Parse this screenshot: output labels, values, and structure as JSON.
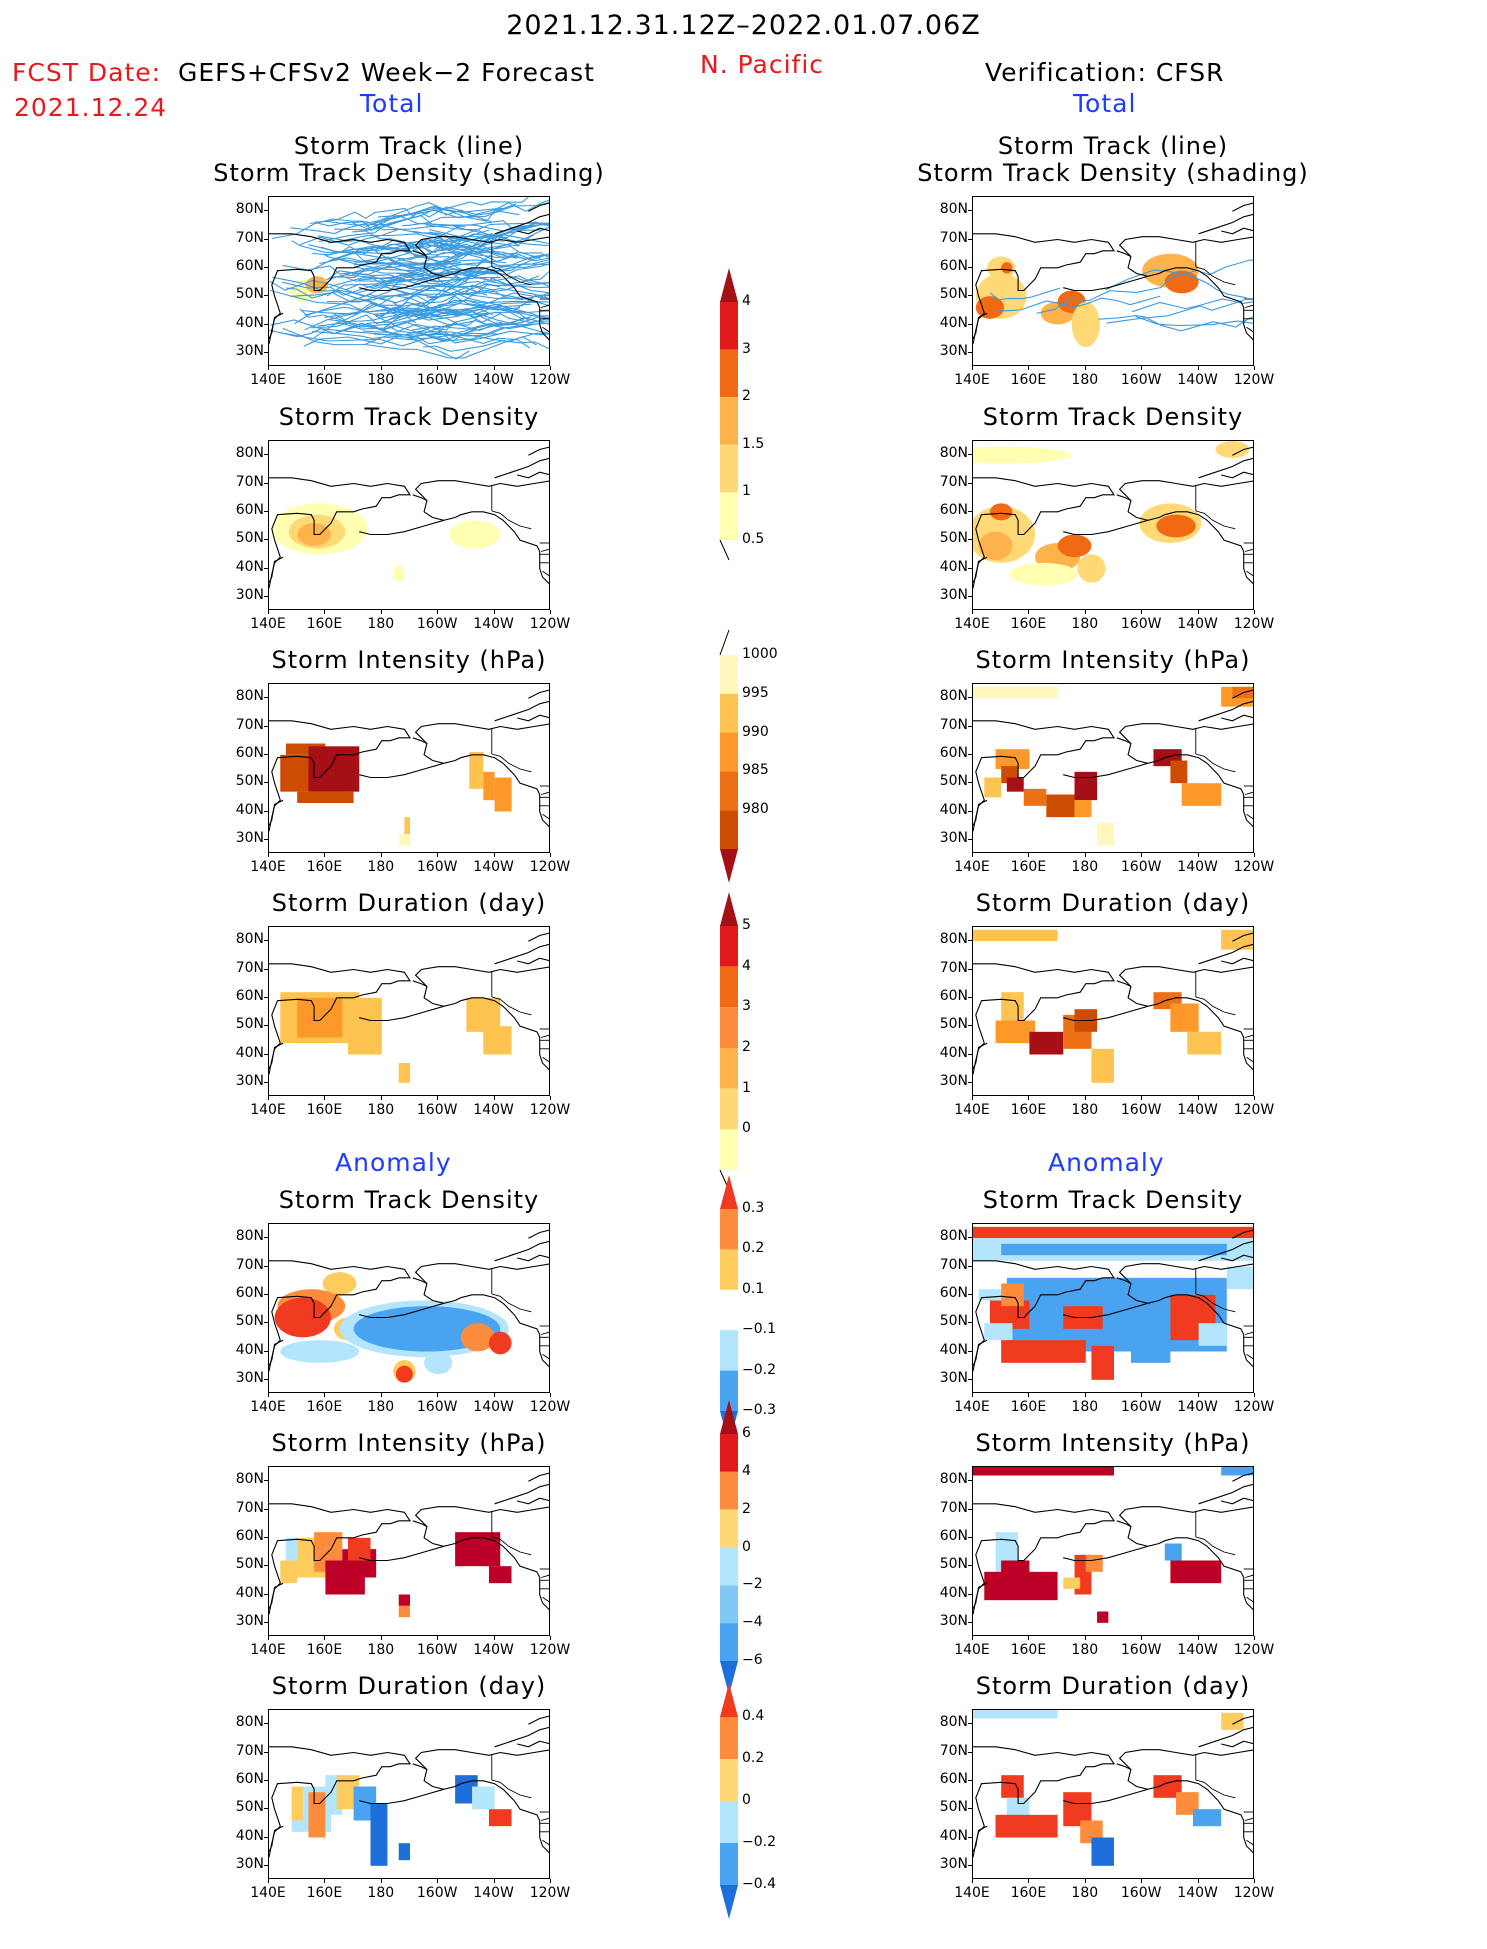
{
  "header": {
    "title": "2021.12.31.12Z–2022.01.07.06Z",
    "region": "N. Pacific",
    "fcst_label": "FCST Date:",
    "fcst_model": "GEFS+CFSv2 Week−2 Forecast",
    "fcst_date": "2021.12.24",
    "verification": "Verification: CFSR",
    "total_left": "Total",
    "total_right": "Total",
    "anomaly_left": "Anomaly",
    "anomaly_right": "Anomaly"
  },
  "chart_data": [
    {
      "type": "heatmap",
      "id": "track-fcst",
      "title": "Storm Track (line)",
      "subtitle": "Storm Track Density (shading)",
      "column": "GEFS+CFSv2 Week-2 Forecast",
      "xlabels": [
        "140E",
        "160E",
        "180",
        "160W",
        "140W",
        "120W"
      ],
      "ylabels": [
        "80N",
        "70N",
        "60N",
        "50N",
        "40N",
        "30N"
      ]
    },
    {
      "type": "heatmap",
      "id": "track-verif",
      "title": "Storm Track (line)",
      "subtitle": "Storm Track Density (shading)",
      "column": "Verification: CFSR",
      "xlabels": [
        "140E",
        "160E",
        "180",
        "160W",
        "140W",
        "120W"
      ],
      "ylabels": [
        "80N",
        "70N",
        "60N",
        "50N",
        "40N",
        "30N"
      ]
    },
    {
      "type": "heatmap",
      "id": "density-fcst",
      "title": "Storm Track Density",
      "xlabels": [
        "140E",
        "160E",
        "180",
        "160W",
        "140W",
        "120W"
      ],
      "ylabels": [
        "80N",
        "70N",
        "60N",
        "50N",
        "40N",
        "30N"
      ]
    },
    {
      "type": "heatmap",
      "id": "density-verif",
      "title": "Storm Track Density",
      "xlabels": [
        "140E",
        "160E",
        "180",
        "160W",
        "140W",
        "120W"
      ],
      "ylabels": [
        "80N",
        "70N",
        "60N",
        "50N",
        "40N",
        "30N"
      ]
    },
    {
      "type": "heatmap",
      "id": "intensity-fcst",
      "title": "Storm Intensity (hPa)",
      "xlabels": [
        "140E",
        "160E",
        "180",
        "160W",
        "140W",
        "120W"
      ],
      "ylabels": [
        "80N",
        "70N",
        "60N",
        "50N",
        "40N",
        "30N"
      ]
    },
    {
      "type": "heatmap",
      "id": "intensity-verif",
      "title": "Storm Intensity (hPa)",
      "xlabels": [
        "140E",
        "160E",
        "180",
        "160W",
        "140W",
        "120W"
      ],
      "ylabels": [
        "80N",
        "70N",
        "60N",
        "50N",
        "40N",
        "30N"
      ]
    },
    {
      "type": "heatmap",
      "id": "duration-fcst",
      "title": "Storm Duration (day)",
      "xlabels": [
        "140E",
        "160E",
        "180",
        "160W",
        "140W",
        "120W"
      ],
      "ylabels": [
        "80N",
        "70N",
        "60N",
        "50N",
        "40N",
        "30N"
      ]
    },
    {
      "type": "heatmap",
      "id": "duration-verif",
      "title": "Storm Duration (day)",
      "xlabels": [
        "140E",
        "160E",
        "180",
        "160W",
        "140W",
        "120W"
      ],
      "ylabels": [
        "80N",
        "70N",
        "60N",
        "50N",
        "40N",
        "30N"
      ]
    },
    {
      "type": "heatmap",
      "id": "anom-density-fcst",
      "title": "Storm Track Density",
      "xlabels": [
        "140E",
        "160E",
        "180",
        "160W",
        "140W",
        "120W"
      ],
      "ylabels": [
        "80N",
        "70N",
        "60N",
        "50N",
        "40N",
        "30N"
      ]
    },
    {
      "type": "heatmap",
      "id": "anom-density-verif",
      "title": "Storm Track Density",
      "xlabels": [
        "140E",
        "160E",
        "180",
        "160W",
        "140W",
        "120W"
      ],
      "ylabels": [
        "80N",
        "70N",
        "60N",
        "50N",
        "40N",
        "30N"
      ]
    },
    {
      "type": "heatmap",
      "id": "anom-intensity-fcst",
      "title": "Storm Intensity (hPa)",
      "xlabels": [
        "140E",
        "160E",
        "180",
        "160W",
        "140W",
        "120W"
      ],
      "ylabels": [
        "80N",
        "70N",
        "60N",
        "50N",
        "40N",
        "30N"
      ]
    },
    {
      "type": "heatmap",
      "id": "anom-intensity-verif",
      "title": "Storm Intensity (hPa)",
      "xlabels": [
        "140E",
        "160E",
        "180",
        "160W",
        "140W",
        "120W"
      ],
      "ylabels": [
        "80N",
        "70N",
        "60N",
        "50N",
        "40N",
        "30N"
      ]
    },
    {
      "type": "heatmap",
      "id": "anom-duration-fcst",
      "title": "Storm Duration (day)",
      "xlabels": [
        "140E",
        "160E",
        "180",
        "160W",
        "140W",
        "120W"
      ],
      "ylabels": [
        "80N",
        "70N",
        "60N",
        "50N",
        "40N",
        "30N"
      ]
    },
    {
      "type": "heatmap",
      "id": "anom-duration-verif",
      "title": "Storm Duration (day)",
      "xlabels": [
        "140E",
        "160E",
        "180",
        "160W",
        "140W",
        "120W"
      ],
      "ylabels": [
        "80N",
        "70N",
        "60N",
        "50N",
        "40N",
        "30N"
      ]
    }
  ],
  "colorbars": [
    {
      "id": "cb-density",
      "labels": [
        "4",
        "3",
        "2",
        "1.5",
        "1",
        "0.5"
      ],
      "colors": [
        "#a50f15",
        "#e31a1c",
        "#f16913",
        "#feb24c",
        "#fed976",
        "#ffffb2"
      ]
    },
    {
      "id": "cb-intensity",
      "labels": [
        "1000",
        "995",
        "990",
        "985",
        "980"
      ],
      "colors": [
        "#fff7bc",
        "#fec44f",
        "#fe9929",
        "#ec7014",
        "#cc4c02",
        "#a50f15"
      ]
    },
    {
      "id": "cb-duration",
      "labels": [
        "5",
        "4",
        "3",
        "2",
        "1",
        "0"
      ],
      "colors": [
        "#a50f15",
        "#e31a1c",
        "#f16913",
        "#fd8d3c",
        "#feb24c",
        "#fed976",
        "#ffffb2"
      ]
    },
    {
      "id": "cb-anom-density",
      "labels": [
        "0.3",
        "0.2",
        "0.1",
        "−0.1",
        "−0.2",
        "−0.3"
      ],
      "colors": [
        "#f03b20",
        "#fd8d3c",
        "#fecc5c",
        "#ffffff",
        "#b3e5fc",
        "#4aa3f0",
        "#1e6fd9"
      ]
    },
    {
      "id": "cb-anom-intensity",
      "labels": [
        "6",
        "4",
        "2",
        "0",
        "−2",
        "−4",
        "−6"
      ],
      "colors": [
        "#a50f15",
        "#e31a1c",
        "#fd8d3c",
        "#fed976",
        "#b3e5fc",
        "#81c8f7",
        "#4aa3f0",
        "#1e6fd9"
      ]
    },
    {
      "id": "cb-anom-duration",
      "labels": [
        "0.4",
        "0.2",
        "0",
        "−0.2",
        "−0.4"
      ],
      "colors": [
        "#f03b20",
        "#fd8d3c",
        "#fed976",
        "#b3e5fc",
        "#4aa3f0",
        "#1e6fd9"
      ]
    }
  ]
}
